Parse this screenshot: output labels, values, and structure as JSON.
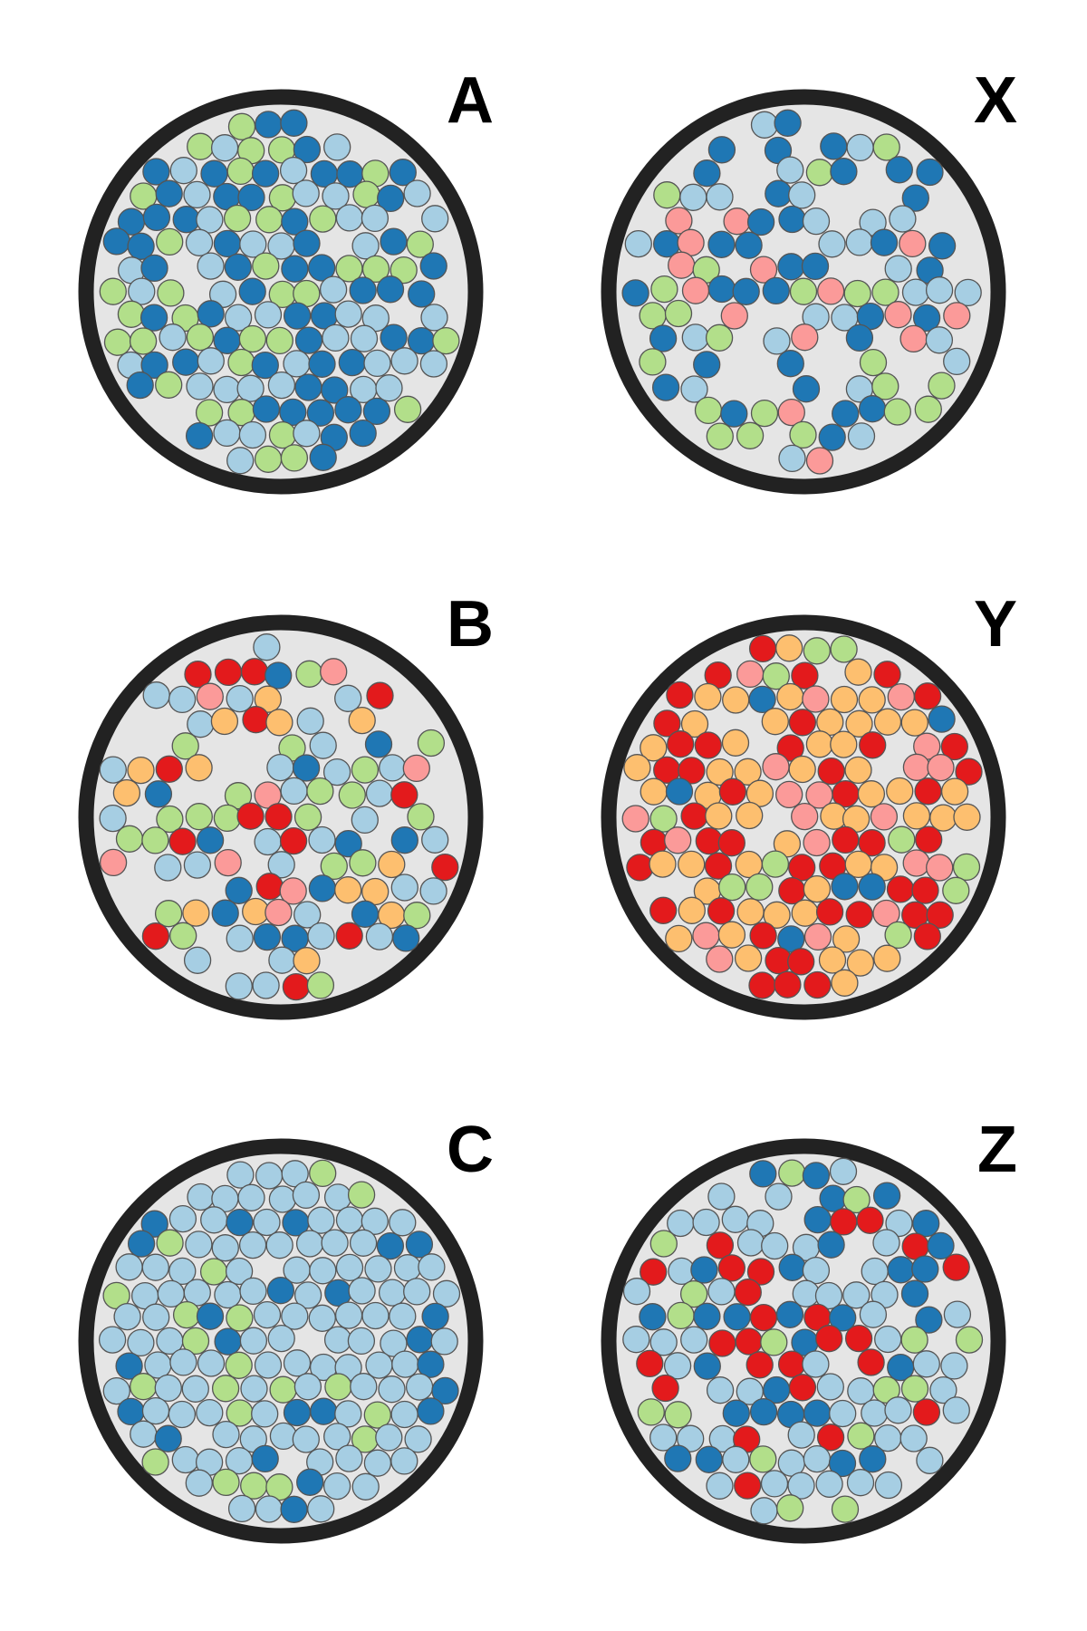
{
  "colors": {
    "dark_blue": "#1f77b4",
    "light_blue": "#a6cee3",
    "light_green": "#b2df8a",
    "pink": "#fb9a99",
    "red": "#e31a1c",
    "orange": "#fdbf6f",
    "dish_fill": "#e5e5e5",
    "dish_border": "#222222"
  },
  "panels": [
    {
      "label": "A",
      "composition": {
        "dark_blue": 0.38,
        "light_blue": 0.36,
        "light_green": 0.26
      },
      "density": 0.95
    },
    {
      "label": "X",
      "composition": {
        "dark_blue": 0.36,
        "light_blue": 0.26,
        "light_green": 0.2,
        "pink": 0.18
      },
      "density": 0.72
    },
    {
      "label": "B",
      "composition": {
        "dark_blue": 0.14,
        "light_blue": 0.2,
        "light_green": 0.2,
        "pink": 0.2,
        "red": 0.12,
        "orange": 0.14
      },
      "density": 0.7
    },
    {
      "label": "Y",
      "composition": {
        "dark_blue": 0.08,
        "light_green": 0.08,
        "pink": 0.16,
        "red": 0.34,
        "orange": 0.34
      },
      "density": 0.92
    },
    {
      "label": "C",
      "composition": {
        "dark_blue": 0.16,
        "light_blue": 0.72,
        "light_green": 0.12
      },
      "density": 0.97
    },
    {
      "label": "Z",
      "composition": {
        "dark_blue": 0.22,
        "light_blue": 0.46,
        "light_green": 0.14,
        "red": 0.18
      },
      "density": 0.82
    }
  ]
}
